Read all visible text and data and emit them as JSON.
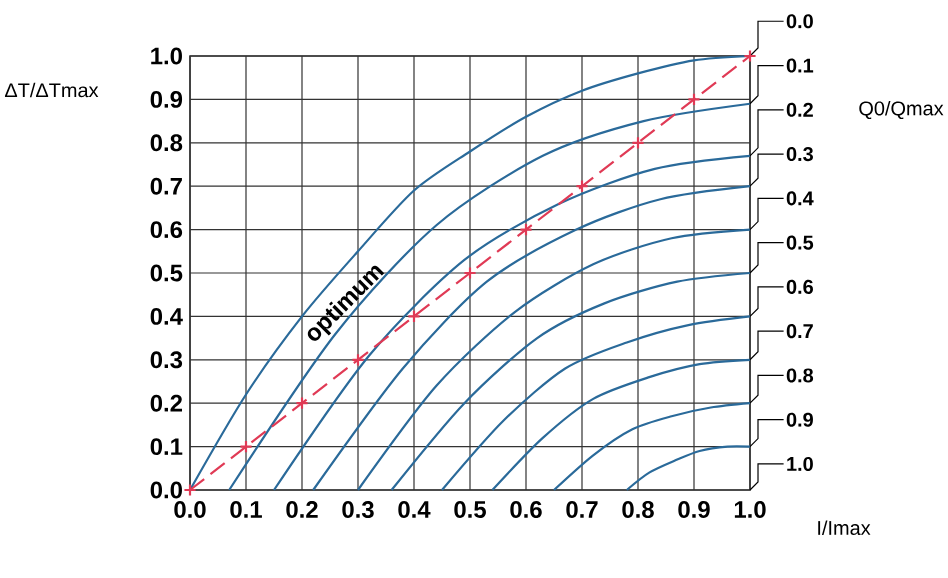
{
  "chart_data": {
    "type": "line",
    "xlabel": "I/Imax",
    "ylabel": "ΔT/ΔTmax",
    "legend_title": "Q0/Qmax",
    "xlim": [
      0,
      1
    ],
    "ylim": [
      0,
      1
    ],
    "xticks": [
      {
        "value": 0,
        "label": "0.0"
      },
      0.1,
      0.2,
      0.3,
      0.4,
      0.5,
      0.6,
      0.7,
      0.8,
      0.9,
      {
        "value": 1,
        "label": "1.0"
      }
    ],
    "yticks": [
      {
        "value": 0,
        "label": "0.0"
      },
      0.1,
      0.2,
      0.3,
      0.4,
      0.5,
      0.6,
      0.7,
      0.8,
      0.9,
      {
        "value": 1,
        "label": "1.0"
      }
    ],
    "grid": true,
    "legend": false,
    "line_style": "solid",
    "marker": "none",
    "series": [
      {
        "name": "0.0",
        "color": "#2a6a9a",
        "x": [
          0,
          0.1,
          0.2,
          0.3,
          0.4,
          0.5,
          0.6,
          0.7,
          0.8,
          0.9,
          1.0
        ],
        "values": [
          0,
          0.22,
          0.4,
          0.55,
          0.69,
          0.78,
          0.86,
          0.92,
          0.96,
          0.99,
          1.0
        ]
      },
      {
        "name": "0.1",
        "color": "#2a6a9a",
        "x": [
          0.07,
          0.26,
          0.44,
          0.63,
          0.81,
          1.0
        ],
        "values": [
          0,
          0.36,
          0.61,
          0.77,
          0.85,
          0.89
        ]
      },
      {
        "name": "0.2",
        "color": "#2a6a9a",
        "x": [
          0.15,
          0.32,
          0.49,
          0.66,
          0.83,
          1.0
        ],
        "values": [
          0,
          0.31,
          0.53,
          0.66,
          0.74,
          0.77
        ]
      },
      {
        "name": "0.3",
        "color": "#2a6a9a",
        "x": [
          0.22,
          0.38,
          0.53,
          0.69,
          0.84,
          1.0
        ],
        "values": [
          0,
          0.28,
          0.48,
          0.6,
          0.67,
          0.7
        ]
      },
      {
        "name": "0.4",
        "color": "#2a6a9a",
        "x": [
          0.3,
          0.44,
          0.58,
          0.72,
          0.86,
          1.0
        ],
        "values": [
          0,
          0.24,
          0.41,
          0.52,
          0.58,
          0.6
        ]
      },
      {
        "name": "0.5",
        "color": "#2a6a9a",
        "x": [
          0.36,
          0.49,
          0.62,
          0.74,
          0.87,
          1.0
        ],
        "values": [
          0,
          0.2,
          0.35,
          0.43,
          0.48,
          0.5
        ]
      },
      {
        "name": "0.6",
        "color": "#2a6a9a",
        "x": [
          0.45,
          0.56,
          0.67,
          0.78,
          0.89,
          1.0
        ],
        "values": [
          0,
          0.16,
          0.28,
          0.34,
          0.38,
          0.4
        ]
      },
      {
        "name": "0.7",
        "color": "#2a6a9a",
        "x": [
          0.54,
          0.63,
          0.72,
          0.82,
          0.91,
          1.0
        ],
        "values": [
          0,
          0.12,
          0.21,
          0.26,
          0.29,
          0.3
        ]
      },
      {
        "name": "0.8",
        "color": "#2a6a9a",
        "x": [
          0.65,
          0.72,
          0.79,
          0.86,
          0.93,
          1.0
        ],
        "values": [
          0,
          0.08,
          0.14,
          0.17,
          0.19,
          0.2
        ]
      },
      {
        "name": "0.9",
        "color": "#2a6a9a",
        "x": [
          0.78,
          0.82,
          0.87,
          0.91,
          0.96,
          1.0
        ],
        "values": [
          0,
          0.04,
          0.07,
          0.09,
          0.1,
          0.1
        ]
      },
      {
        "color": "#e03a55",
        "line_style": "dashed",
        "marker": "cross",
        "x": [
          0,
          0.1,
          0.2,
          0.3,
          0.4,
          0.5,
          0.6,
          0.7,
          0.8,
          0.9,
          1.0
        ],
        "values": [
          0,
          0.1,
          0.2,
          0.3,
          0.4,
          0.5,
          0.6,
          0.7,
          0.8,
          0.9,
          1.0
        ]
      }
    ],
    "annotations": [
      "1.0",
      {
        "text": "optimum",
        "x": 0.3,
        "y": 0.4
      }
    ]
  }
}
